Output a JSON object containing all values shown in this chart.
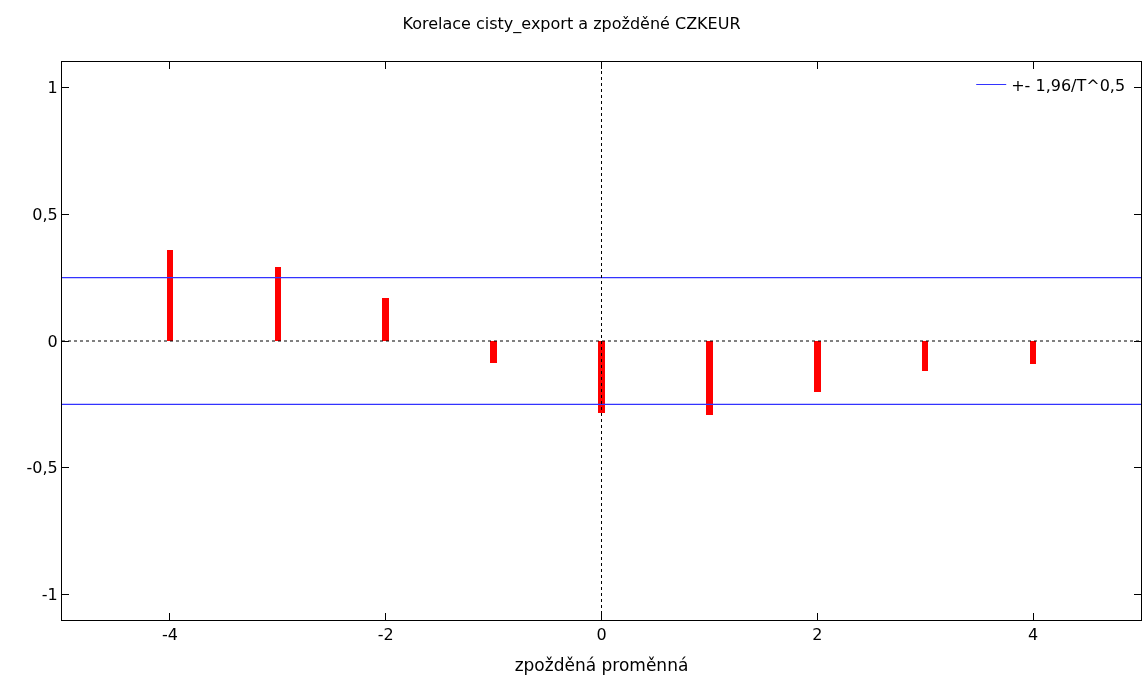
{
  "chart_data": {
    "type": "bar",
    "title": "Korelace cisty_export a zpožděné CZKEUR",
    "xlabel": "zpožděná proměnná",
    "x": [
      -4,
      -3,
      -2,
      -1,
      0,
      1,
      2,
      3,
      4
    ],
    "series": [
      {
        "color": "#ff0000",
        "values": [
          0.36,
          0.29,
          0.17,
          -0.085,
          -0.285,
          -0.29,
          -0.2,
          -0.12,
          -0.09
        ]
      }
    ],
    "xlim": [
      -5,
      5
    ],
    "xticks": [
      -4,
      -2,
      0,
      2,
      4
    ],
    "ylim": [
      -1.1,
      1.1
    ],
    "yticks": [
      {
        "value": -1,
        "label": "-1"
      },
      {
        "value": -0.5,
        "label": "-0,5"
      },
      {
        "value": 0,
        "label": "0"
      },
      {
        "value": 0.5,
        "label": "0,5"
      },
      {
        "value": 1,
        "label": "1"
      }
    ],
    "ref_lines": [
      {
        "axis": "y",
        "value": 0.25,
        "label": "+- 1,96/T^0,5",
        "color": "#3333ff",
        "line_style": "solid"
      },
      {
        "axis": "y",
        "value": -0.25,
        "label": null,
        "color": "#3333ff",
        "line_style": "solid"
      },
      {
        "axis": "y",
        "value": 0,
        "label": null,
        "color": "#000000",
        "line_style": "dotted"
      },
      {
        "axis": "x",
        "value": 0,
        "label": null,
        "color": "#000000",
        "line_style": "dotted"
      }
    ],
    "legend": "top right"
  }
}
